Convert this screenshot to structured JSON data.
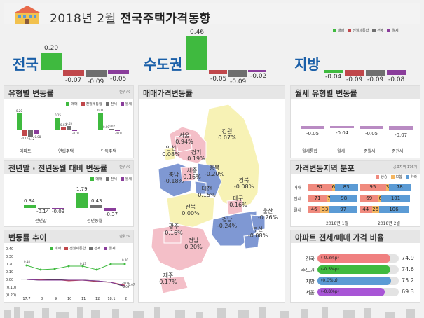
{
  "title": {
    "prefix": "2018년 2월",
    "bold": "전국주택가격동향"
  },
  "colors": {
    "sale": "#3fba3f",
    "jeonse_monthly": "#c0474b",
    "jeonse": "#6f6f6f",
    "monthly": "#8a3d9b"
  },
  "legend": {
    "items": [
      "매매",
      "전월세통합",
      "전세",
      "월세"
    ]
  },
  "summary": {
    "groups": [
      {
        "name": "전국",
        "values": [
          "0.20",
          "-0.07",
          "-0.09",
          "-0.05"
        ]
      },
      {
        "name": "수도권",
        "values": [
          "0.46",
          "-0.05",
          "-0.09",
          "-0.02"
        ]
      },
      {
        "name": "지방",
        "values": [
          "-0.04",
          "-0.09",
          "-0.09",
          "-0.08"
        ]
      }
    ]
  },
  "type_panel": {
    "title": "유형별 변동률",
    "unit": "단위:%",
    "legend": [
      "매매",
      "전월세통합",
      "전세",
      "월세"
    ],
    "groups": [
      {
        "name": "아파트",
        "values": [
          "0.20",
          "-0.11",
          "-0.12",
          "-0.08"
        ]
      },
      {
        "name": "연립주택",
        "values": [
          "0.15",
          "0.03",
          "0.05",
          "-0.01"
        ]
      },
      {
        "name": "단독주택",
        "values": [
          "0.21",
          "0.00",
          "0.02",
          "-0.01"
        ]
      }
    ]
  },
  "yoy_panel": {
    "title": "전년말 · 전년동월 대비 변동률",
    "unit": "단위:%",
    "legend": [
      "매매",
      "전세",
      "월세"
    ],
    "groups": [
      {
        "name": "전년말",
        "values": [
          "0.34",
          "-0.14",
          "-0.09"
        ]
      },
      {
        "name": "전년동월",
        "values": [
          "1.79",
          "0.43",
          "-0.37"
        ]
      }
    ]
  },
  "trend_panel": {
    "title": "변동률 추이",
    "unit": "단위:%",
    "legend": [
      "매매",
      "전월세통합",
      "전세",
      "월세"
    ],
    "x_labels": [
      "'17.7",
      "8",
      "9",
      "10",
      "11",
      "12",
      "'18.1",
      "2"
    ],
    "y_labels": [
      "0.40",
      "0.30",
      "0.20",
      "0.10",
      "0.00",
      "(0.10)",
      "(0.20)"
    ],
    "point_labels": [
      "0.18",
      "0.20",
      "0.13",
      "-0.08",
      "-0.09",
      "-0.07"
    ]
  },
  "map_panel": {
    "title": "매매가격변동률",
    "regions": [
      {
        "name": "서울",
        "value": "0.94%"
      },
      {
        "name": "인천",
        "value": "0.08%"
      },
      {
        "name": "경기",
        "value": "0.19%"
      },
      {
        "name": "강원",
        "value": "0.07%"
      },
      {
        "name": "충북",
        "value": "-0.20%"
      },
      {
        "name": "충남",
        "value": "-0.18%"
      },
      {
        "name": "세종",
        "value": "0.16%"
      },
      {
        "name": "대전",
        "value": "0.15%"
      },
      {
        "name": "경북",
        "value": "-0.08%"
      },
      {
        "name": "대구",
        "value": "0.16%"
      },
      {
        "name": "전북",
        "value": "0.00%"
      },
      {
        "name": "울산",
        "value": "-0.26%"
      },
      {
        "name": "경남",
        "value": "-0.24%"
      },
      {
        "name": "부산",
        "value": "-0.08%"
      },
      {
        "name": "광주",
        "value": "0.16%"
      },
      {
        "name": "전남",
        "value": "0.20%"
      },
      {
        "name": "제주",
        "value": "0.17%"
      }
    ]
  },
  "monthly_panel": {
    "title": "월세 유형별 변동률",
    "items": [
      {
        "name": "월세통합",
        "value": "-0.05"
      },
      {
        "name": "월세",
        "value": "-0.04"
      },
      {
        "name": "준월세",
        "value": "-0.05"
      },
      {
        "name": "준전세",
        "value": "-0.07"
      }
    ]
  },
  "dist_panel": {
    "title": "가격변동지역 분포",
    "unit": "공표지역 176개",
    "legend": [
      "상승",
      "보합",
      "하락"
    ],
    "colors": {
      "up": "#f08a7e",
      "flat": "#f5b660",
      "down": "#5b9bd5"
    },
    "rows": [
      {
        "name": "매매",
        "jan": [
          "87",
          "6",
          "83"
        ],
        "feb": [
          "95",
          "3",
          "78"
        ]
      },
      {
        "name": "전세",
        "jan": [
          "71",
          "7",
          "98"
        ],
        "feb": [
          "69",
          "6",
          "101"
        ]
      },
      {
        "name": "월세",
        "jan": [
          "46",
          "33",
          "97"
        ],
        "feb": [
          "44",
          "26",
          "106"
        ]
      }
    ],
    "periods": [
      "2018년 1월",
      "2018년 2월"
    ]
  },
  "apt_panel": {
    "title": "아파트 전세/매매 가격 비율",
    "rows": [
      {
        "name": "전국",
        "change": "(-0.3%p)",
        "value": "74.9",
        "pct": 0.749,
        "color": "#f08080"
      },
      {
        "name": "수도권",
        "change": "(-0.5%p)",
        "value": "74.6",
        "pct": 0.746,
        "color": "#3fba3f"
      },
      {
        "name": "지방",
        "change": "(0.0%p)",
        "value": "75.2",
        "pct": 0.752,
        "color": "#5b9bd5"
      },
      {
        "name": "서울",
        "change": "(-0.8%p)",
        "value": "69.3",
        "pct": 0.693,
        "color": "#a855d6"
      }
    ]
  }
}
